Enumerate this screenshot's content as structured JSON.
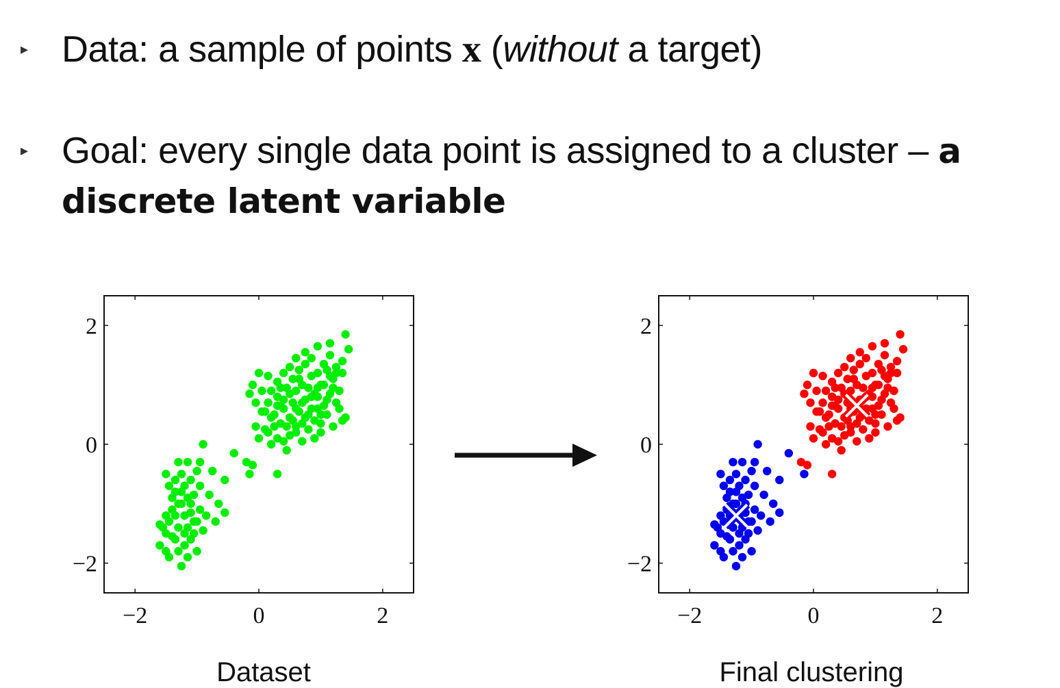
{
  "bullets": [
    {
      "marker": "▸",
      "parts": [
        {
          "style": "normal",
          "text": "Data: a sample of points "
        },
        {
          "style": "bold-x",
          "text": "x"
        },
        {
          "style": "normal",
          "text": " ("
        },
        {
          "style": "italic",
          "text": "without"
        },
        {
          "style": "normal",
          "text": " a target)"
        }
      ]
    },
    {
      "marker": "▸",
      "parts": [
        {
          "style": "normal",
          "text": "Goal: every single data point is assigned to a cluster – "
        },
        {
          "style": "bold-sans",
          "text": "a discrete latent variable"
        }
      ]
    }
  ],
  "colors": {
    "dataset_points": "#00ee00",
    "cluster_red": "#ff0000",
    "cluster_blue": "#0000ee",
    "centroid_marker": "#ffffff"
  },
  "chart_data": [
    {
      "type": "scatter",
      "title": "",
      "caption": "Dataset",
      "xlabel": "",
      "ylabel": "",
      "xlim": [
        -2.5,
        2.5
      ],
      "ylim": [
        -2.5,
        2.5
      ],
      "xticks": [
        -2,
        0,
        2
      ],
      "yticks": [
        -2,
        0,
        2
      ],
      "tick_labels": {
        "x": [
          "−2",
          "0",
          "2"
        ],
        "y": [
          "2",
          "0",
          "−2"
        ]
      },
      "series": [
        {
          "color": "#00ee00",
          "points": [
            [
              -1.5,
              -0.5
            ],
            [
              -1.45,
              -0.7
            ],
            [
              -1.4,
              -0.9
            ],
            [
              -1.35,
              -0.6
            ],
            [
              -1.3,
              -1.0
            ],
            [
              -1.25,
              -0.8
            ],
            [
              -1.2,
              -1.2
            ],
            [
              -1.15,
              -0.9
            ],
            [
              -1.1,
              -0.6
            ],
            [
              -1.05,
              -1.3
            ],
            [
              -1.0,
              -0.45
            ],
            [
              -0.95,
              -0.7
            ],
            [
              -1.3,
              -0.3
            ],
            [
              -1.25,
              -0.5
            ],
            [
              -1.2,
              -0.7
            ],
            [
              -1.1,
              -1.0
            ],
            [
              -1.15,
              -1.4
            ],
            [
              -1.4,
              -1.1
            ],
            [
              -1.45,
              -1.3
            ],
            [
              -1.5,
              -1.5
            ],
            [
              -1.55,
              -1.4
            ],
            [
              -1.6,
              -1.7
            ],
            [
              -1.5,
              -1.8
            ],
            [
              -1.45,
              -1.9
            ],
            [
              -1.35,
              -1.6
            ],
            [
              -1.3,
              -1.8
            ],
            [
              -1.25,
              -2.05
            ],
            [
              -1.2,
              -1.7
            ],
            [
              -1.15,
              -1.9
            ],
            [
              -1.1,
              -1.6
            ],
            [
              -1.05,
              -1.5
            ],
            [
              -1.0,
              -1.3
            ],
            [
              -0.95,
              -1.1
            ],
            [
              -0.9,
              -1.45
            ],
            [
              -0.85,
              -1.2
            ],
            [
              -0.8,
              -0.85
            ],
            [
              -1.35,
              -1.2
            ],
            [
              -1.3,
              -1.4
            ],
            [
              -1.4,
              -1.55
            ],
            [
              -1.5,
              -1.2
            ],
            [
              -1.2,
              -1.5
            ],
            [
              -1.0,
              -1.8
            ],
            [
              -0.95,
              -0.3
            ],
            [
              -1.15,
              -0.3
            ],
            [
              -0.9,
              0.0
            ],
            [
              -0.75,
              -0.45
            ],
            [
              -0.55,
              -0.6
            ],
            [
              -0.65,
              -1.0
            ],
            [
              -0.55,
              -1.15
            ],
            [
              -0.7,
              -1.3
            ],
            [
              -1.6,
              -1.35
            ],
            [
              -1.25,
              -1.0
            ],
            [
              -1.35,
              -0.8
            ],
            [
              -1.05,
              -0.85
            ],
            [
              -1.1,
              -1.15
            ],
            [
              -0.4,
              -0.15
            ],
            [
              -0.2,
              -0.3
            ],
            [
              -0.1,
              -0.35
            ],
            [
              -0.15,
              -0.5
            ],
            [
              0.3,
              -0.5
            ],
            [
              0.0,
              0.1
            ],
            [
              -0.05,
              0.3
            ],
            [
              0.05,
              0.55
            ],
            [
              0.1,
              0.25
            ],
            [
              0.2,
              0.0
            ],
            [
              0.3,
              0.1
            ],
            [
              0.4,
              0.05
            ],
            [
              0.45,
              -0.1
            ],
            [
              0.5,
              0.15
            ],
            [
              0.35,
              0.35
            ],
            [
              0.25,
              0.5
            ],
            [
              0.15,
              0.7
            ],
            [
              0.2,
              0.9
            ],
            [
              0.3,
              0.8
            ],
            [
              0.4,
              0.6
            ],
            [
              0.5,
              0.45
            ],
            [
              0.55,
              0.7
            ],
            [
              0.6,
              0.9
            ],
            [
              0.65,
              0.55
            ],
            [
              0.7,
              0.35
            ],
            [
              0.75,
              0.75
            ],
            [
              0.8,
              0.95
            ],
            [
              0.85,
              0.6
            ],
            [
              0.9,
              0.4
            ],
            [
              0.95,
              0.8
            ],
            [
              1.0,
              1.0
            ],
            [
              1.05,
              0.65
            ],
            [
              1.1,
              0.5
            ],
            [
              1.15,
              0.85
            ],
            [
              1.2,
              1.1
            ],
            [
              1.25,
              0.7
            ],
            [
              1.3,
              0.9
            ],
            [
              1.35,
              0.4
            ],
            [
              1.4,
              0.45
            ],
            [
              0.55,
              1.1
            ],
            [
              0.65,
              1.25
            ],
            [
              0.75,
              1.35
            ],
            [
              0.85,
              1.45
            ],
            [
              0.95,
              1.2
            ],
            [
              1.05,
              1.35
            ],
            [
              1.15,
              1.5
            ],
            [
              1.25,
              1.2
            ],
            [
              1.35,
              1.4
            ],
            [
              1.45,
              1.6
            ],
            [
              1.4,
              1.85
            ],
            [
              1.15,
              1.7
            ],
            [
              0.95,
              1.65
            ],
            [
              0.75,
              1.55
            ],
            [
              0.6,
              1.45
            ],
            [
              0.4,
              1.2
            ],
            [
              0.3,
              1.05
            ],
            [
              0.15,
              1.15
            ],
            [
              0.0,
              1.2
            ],
            [
              -0.1,
              1.0
            ],
            [
              -0.15,
              0.85
            ],
            [
              -0.05,
              0.7
            ],
            [
              0.05,
              0.9
            ],
            [
              0.45,
              0.3
            ],
            [
              0.6,
              0.2
            ],
            [
              0.8,
              0.25
            ],
            [
              1.0,
              0.2
            ],
            [
              1.2,
              0.3
            ],
            [
              0.7,
              0.05
            ],
            [
              0.9,
              0.1
            ],
            [
              1.1,
              0.75
            ],
            [
              1.0,
              0.5
            ],
            [
              0.85,
              0.8
            ],
            [
              0.7,
              1.0
            ],
            [
              0.5,
              0.85
            ],
            [
              0.35,
              0.65
            ],
            [
              0.25,
              0.3
            ],
            [
              0.45,
              0.95
            ],
            [
              0.6,
              0.6
            ],
            [
              0.8,
              0.5
            ],
            [
              0.95,
              0.6
            ],
            [
              1.2,
              0.95
            ],
            [
              1.3,
              0.6
            ],
            [
              0.55,
              0.4
            ],
            [
              0.7,
              0.7
            ],
            [
              0.9,
              0.85
            ],
            [
              1.05,
              1.0
            ],
            [
              0.4,
              0.75
            ],
            [
              0.65,
              1.1
            ],
            [
              1.25,
              1.3
            ],
            [
              1.35,
              1.2
            ],
            [
              0.2,
              0.45
            ],
            [
              0.1,
              0.55
            ],
            [
              0.35,
              0.95
            ],
            [
              0.5,
              1.3
            ],
            [
              0.85,
              1.15
            ],
            [
              1.15,
              1.15
            ],
            [
              0.75,
              0.45
            ],
            [
              0.6,
              0.3
            ],
            [
              1.0,
              0.35
            ],
            [
              0.15,
              0.2
            ],
            [
              0.3,
              0.65
            ],
            [
              0.95,
              0.95
            ],
            [
              1.1,
              1.25
            ]
          ]
        }
      ]
    },
    {
      "type": "scatter",
      "title": "",
      "caption": "Final clustering",
      "xlabel": "",
      "ylabel": "",
      "xlim": [
        -2.5,
        2.5
      ],
      "ylim": [
        -2.5,
        2.5
      ],
      "xticks": [
        -2,
        0,
        2
      ],
      "yticks": [
        -2,
        0,
        2
      ],
      "tick_labels": {
        "x": [
          "−2",
          "0",
          "2"
        ],
        "y": [
          "2",
          "0",
          "−2"
        ]
      },
      "centroids": [
        {
          "color": "#0000ee",
          "x": -1.25,
          "y": -1.2
        },
        {
          "color": "#ff0000",
          "x": 0.7,
          "y": 0.65
        }
      ]
    }
  ],
  "captions": {
    "left": "Dataset",
    "right": "Final clustering"
  }
}
